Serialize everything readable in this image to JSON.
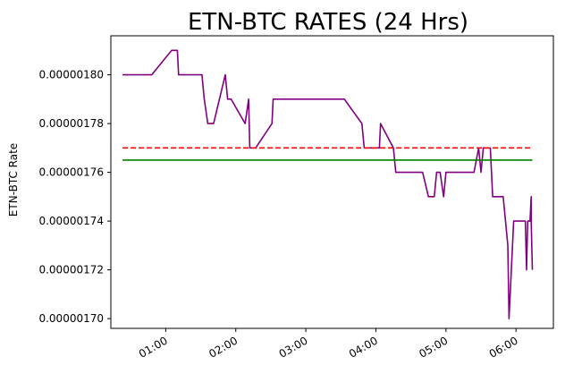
{
  "chart_data": {
    "type": "line",
    "title": "ETN-BTC RATES (24 Hrs)",
    "xlabel": "",
    "ylabel": "ETN-BTC Rate",
    "x_unit": "time (HH:MM)",
    "xlim": [
      "00:13",
      "06:32"
    ],
    "ylim": [
      1.696e-06,
      1.816e-06
    ],
    "x_ticks": [
      "01:00",
      "02:00",
      "03:00",
      "04:00",
      "05:00",
      "06:00"
    ],
    "y_ticks": [
      "0.00000170",
      "0.00000172",
      "0.00000174",
      "0.00000176",
      "0.00000178",
      "0.00000180"
    ],
    "grid": false,
    "legend": "none",
    "series": [
      {
        "kind": "price",
        "color": "#800080",
        "style": "solid",
        "x": [
          "00:23",
          "00:48",
          "01:05",
          "01:10",
          "01:11",
          "01:11",
          "01:31",
          "01:33",
          "01:36",
          "01:41",
          "01:51",
          "01:53",
          "01:56",
          "02:08",
          "02:11",
          "02:12",
          "02:14",
          "02:16",
          "02:17",
          "02:31",
          "02:32",
          "02:34",
          "02:40",
          "03:10",
          "03:20",
          "03:33",
          "03:48",
          "03:50",
          "03:53",
          "04:03",
          "04:04",
          "04:15",
          "04:17",
          "04:40",
          "04:45",
          "04:50",
          "04:52",
          "04:53",
          "04:55",
          "04:58",
          "05:00",
          "05:03",
          "05:06",
          "05:07",
          "05:12",
          "05:24",
          "05:28",
          "05:30",
          "05:32",
          "05:38",
          "05:40",
          "05:41",
          "05:49",
          "05:51",
          "05:53",
          "05:54",
          "05:58",
          "06:01",
          "06:08",
          "06:09",
          "06:10",
          "06:12",
          "06:13",
          "06:13",
          "06:14"
        ],
        "y": [
          1.8e-06,
          1.8e-06,
          1.81e-06,
          1.81e-06,
          1.8e-06,
          1.8e-06,
          1.8e-06,
          1.79e-06,
          1.78e-06,
          1.78e-06,
          1.8e-06,
          1.79e-06,
          1.79e-06,
          1.78e-06,
          1.79e-06,
          1.77e-06,
          1.77e-06,
          1.77e-06,
          1.77e-06,
          1.78e-06,
          1.79e-06,
          1.79e-06,
          1.79e-06,
          1.79e-06,
          1.79e-06,
          1.79e-06,
          1.78e-06,
          1.77e-06,
          1.77e-06,
          1.77e-06,
          1.78e-06,
          1.77e-06,
          1.76e-06,
          1.76e-06,
          1.75e-06,
          1.75e-06,
          1.76e-06,
          1.76e-06,
          1.76e-06,
          1.75e-06,
          1.76e-06,
          1.76e-06,
          1.76e-06,
          1.76e-06,
          1.76e-06,
          1.76e-06,
          1.77e-06,
          1.76e-06,
          1.77e-06,
          1.77e-06,
          1.75e-06,
          1.75e-06,
          1.75e-06,
          1.74e-06,
          1.73e-06,
          1.7e-06,
          1.74e-06,
          1.74e-06,
          1.74e-06,
          1.72e-06,
          1.74e-06,
          1.74e-06,
          1.75e-06,
          1.74e-06,
          1.72e-06
        ]
      },
      {
        "kind": "reference",
        "color": "#ff0000",
        "style": "dashed",
        "x": [
          "00:23",
          "06:14"
        ],
        "y": [
          1.77e-06,
          1.77e-06
        ]
      },
      {
        "kind": "reference",
        "color": "#008000",
        "style": "solid",
        "x": [
          "00:23",
          "06:14"
        ],
        "y": [
          1.765e-06,
          1.765e-06
        ]
      }
    ]
  }
}
